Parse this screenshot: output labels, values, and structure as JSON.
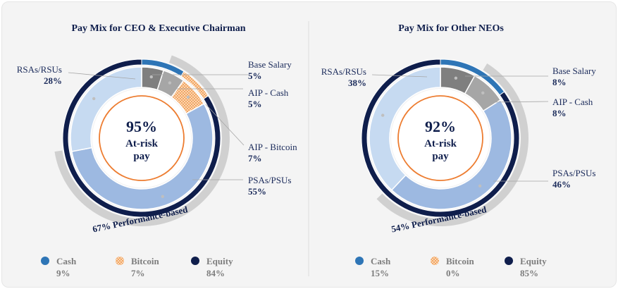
{
  "colors": {
    "cash": "#2e75b6",
    "bitcoin": "#f4a460",
    "equity": "#0f1e4c",
    "base": "#7f7f7f",
    "aip_cash": "#a6a6a6",
    "aip_bitcoin": "#fbd8b4",
    "psa": "#9db9e1",
    "rsa": "#c6daf1",
    "perf_band": "#d0d0d0",
    "center_ring": "#ed7d31"
  },
  "chart_data": [
    {
      "type": "pie",
      "title": "Pay Mix for CEO & Executive Chairman",
      "center": {
        "value": "95%",
        "line1": "At-risk",
        "line2": "pay"
      },
      "segments": [
        {
          "name": "Base Salary",
          "value": 5,
          "label": "5%",
          "key": "base"
        },
        {
          "name": "AIP - Cash",
          "value": 5,
          "label": "5%",
          "key": "aip_cash"
        },
        {
          "name": "AIP - Bitcoin",
          "value": 7,
          "label": "7%",
          "key": "aip_bitcoin"
        },
        {
          "name": "PSAs/PSUs",
          "value": 55,
          "label": "55%",
          "key": "psa"
        },
        {
          "name": "RSAs/RSUs",
          "value": 28,
          "label": "28%",
          "key": "rsa"
        }
      ],
      "outer_ring": [
        {
          "name": "Cash",
          "value": 9,
          "key": "cash"
        },
        {
          "name": "Bitcoin",
          "value": 7,
          "key": "bitcoin"
        },
        {
          "name": "Equity",
          "value": 84,
          "key": "equity"
        }
      ],
      "performance_band": {
        "label": "67% Performance-based",
        "value": 67
      },
      "legend": [
        {
          "name": "Cash",
          "value": "9%",
          "key": "cash"
        },
        {
          "name": "Bitcoin",
          "value": "7%",
          "key": "bitcoin"
        },
        {
          "name": "Equity",
          "value": "84%",
          "key": "equity"
        }
      ]
    },
    {
      "type": "pie",
      "title": "Pay Mix for Other NEOs",
      "center": {
        "value": "92%",
        "line1": "At-risk",
        "line2": "pay"
      },
      "segments": [
        {
          "name": "Base Salary",
          "value": 8,
          "label": "8%",
          "key": "base"
        },
        {
          "name": "AIP - Cash",
          "value": 8,
          "label": "8%",
          "key": "aip_cash"
        },
        {
          "name": "PSAs/PSUs",
          "value": 46,
          "label": "46%",
          "key": "psa"
        },
        {
          "name": "RSAs/RSUs",
          "value": 38,
          "label": "38%",
          "key": "rsa"
        }
      ],
      "outer_ring": [
        {
          "name": "Cash",
          "value": 15,
          "key": "cash"
        },
        {
          "name": "Bitcoin",
          "value": 0,
          "key": "bitcoin"
        },
        {
          "name": "Equity",
          "value": 85,
          "key": "equity"
        }
      ],
      "performance_band": {
        "label": "54% Performance-based",
        "value": 54
      },
      "legend": [
        {
          "name": "Cash",
          "value": "15%",
          "key": "cash"
        },
        {
          "name": "Bitcoin",
          "value": "0%",
          "key": "bitcoin"
        },
        {
          "name": "Equity",
          "value": "85%",
          "key": "equity"
        }
      ]
    }
  ]
}
